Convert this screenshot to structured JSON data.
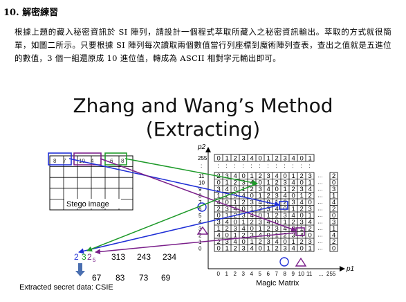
{
  "section": {
    "heading": "10. 解密練習"
  },
  "paragraph": "根據上題的藏入秘密資訊於 SI 陣列，請設計一個程式萃取所藏入之秘密資訊輸出。萃取的方式就很簡單，如圖二所示。只要根據 SI 陣列每次讀取兩個數值當行列座標到魔術陣列查表，查出之值就是五進位的數值，3 個一組還原成 10 進位值，轉成為 ASCII 相對字元輸出即可。",
  "slide": {
    "title_line1": "Zhang and Wang’s Method",
    "title_line2": "(Extracting)"
  },
  "stego": {
    "caption": "Stego image",
    "pixels": [
      "8",
      "7",
      "10",
      "4",
      "6",
      "8"
    ]
  },
  "matrix": {
    "caption": "Magic Matrix",
    "y_axis_label": "p2",
    "x_axis_label": "p1",
    "top_row_label": "255",
    "top_row": [
      "0",
      "1",
      "2",
      "3",
      "4",
      "0",
      "1",
      "2",
      "3",
      "4",
      "0",
      "1"
    ],
    "dots": ":",
    "rows": [
      {
        "label": "11",
        "cells": [
          "2",
          "3",
          "4",
          "0",
          "1",
          "2",
          "3",
          "4",
          "0",
          "1",
          "2",
          "3"
        ]
      },
      {
        "label": "10",
        "cells": [
          "0",
          "1",
          "2",
          "3",
          "4",
          "0",
          "1",
          "2",
          "3",
          "4",
          "0",
          "1"
        ]
      },
      {
        "label": "9",
        "cells": [
          "3",
          "4",
          "0",
          "1",
          "2",
          "3",
          "4",
          "0",
          "1",
          "2",
          "3",
          "4"
        ]
      },
      {
        "label": "8",
        "cells": [
          "1",
          "2",
          "3",
          "4",
          "0",
          "1",
          "2",
          "3",
          "4",
          "0",
          "1",
          "2"
        ]
      },
      {
        "label": "7",
        "cells": [
          "4",
          "0",
          "1",
          "2",
          "3",
          "4",
          "0",
          "1",
          "2",
          "3",
          "4",
          "0"
        ]
      },
      {
        "label": "6",
        "cells": [
          "2",
          "3",
          "4",
          "0",
          "1",
          "2",
          "3",
          "4",
          "0",
          "1",
          "2",
          "3"
        ]
      },
      {
        "label": "5",
        "cells": [
          "0",
          "1",
          "2",
          "3",
          "4",
          "0",
          "1",
          "2",
          "3",
          "4",
          "0",
          "1"
        ]
      },
      {
        "label": "4",
        "cells": [
          "3",
          "4",
          "0",
          "1",
          "2",
          "3",
          "4",
          "0",
          "1",
          "2",
          "3",
          "4"
        ]
      },
      {
        "label": "3",
        "cells": [
          "1",
          "2",
          "3",
          "4",
          "0",
          "1",
          "2",
          "3",
          "4",
          "0",
          "1",
          "2"
        ]
      },
      {
        "label": "2",
        "cells": [
          "4",
          "0",
          "1",
          "2",
          "3",
          "4",
          "0",
          "1",
          "2",
          "3",
          "4",
          "0"
        ]
      },
      {
        "label": "1",
        "cells": [
          "2",
          "3",
          "4",
          "0",
          "1",
          "2",
          "3",
          "4",
          "0",
          "1",
          "2",
          "3"
        ]
      },
      {
        "label": "0",
        "cells": [
          "0",
          "1",
          "2",
          "3",
          "4",
          "0",
          "1",
          "2",
          "3",
          "4",
          "0",
          "1"
        ]
      }
    ],
    "ellipsis": "…",
    "right_column": [
      "2",
      "0",
      "3",
      "1",
      "4",
      "2",
      "0",
      "3",
      "1",
      "4",
      "2",
      "0"
    ],
    "x_ticks": [
      "0",
      "1",
      "2",
      "3",
      "4",
      "5",
      "6",
      "7",
      "8",
      "9",
      "10",
      "11",
      "…",
      "255"
    ]
  },
  "extraction": {
    "digit_blue": "2",
    "digit_green": "3",
    "digit_purple": "2",
    "subscript": "5",
    "groups": [
      "313",
      "243",
      "234"
    ],
    "decimals": [
      "67",
      "83",
      "73",
      "69"
    ],
    "result_label": "Extracted secret data: CSIE"
  },
  "colors": {
    "blue": "#1f2fd6",
    "purple": "#7a1f8a",
    "green": "#1e9a2a",
    "grid": "#000000",
    "arrow_down": "#4a6fb0"
  }
}
